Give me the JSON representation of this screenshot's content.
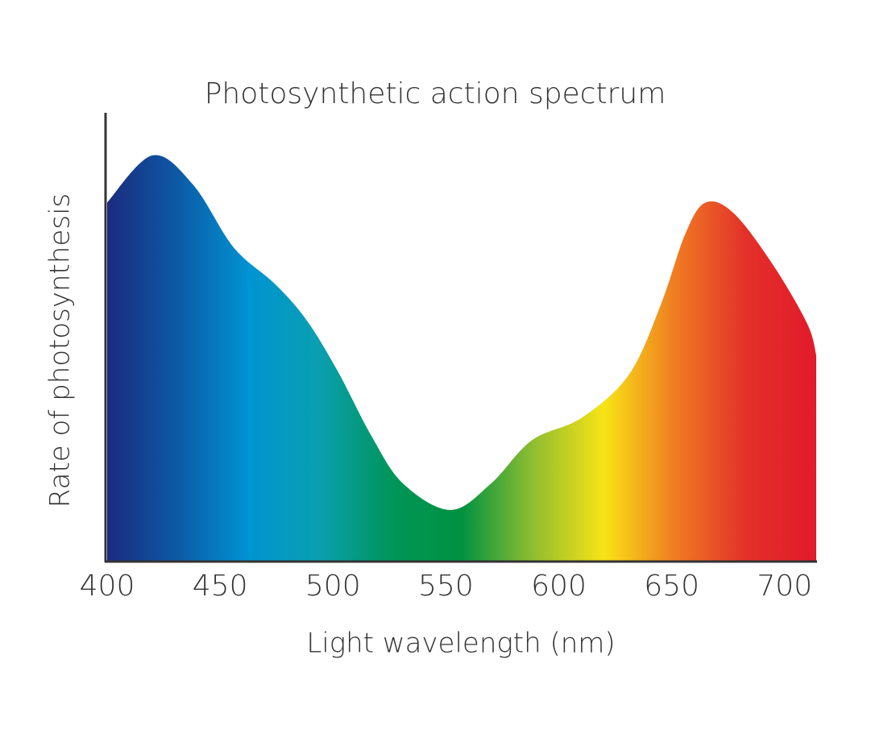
{
  "chart_data": {
    "type": "area",
    "title": "Photosynthetic action spectrum",
    "x_label": "Light wavelength (nm)",
    "y_label": "Rate of photosynthesis",
    "x": [
      400,
      420,
      438,
      456,
      474,
      488,
      502,
      517,
      531,
      552,
      570,
      588,
      610,
      631,
      645,
      656,
      665,
      677.5,
      695,
      710,
      714
    ],
    "values": [
      80,
      90.5,
      84,
      70,
      62,
      54,
      42.5,
      28,
      17.4,
      11.5,
      17.4,
      27,
      32,
      41.6,
      57,
      73,
      80,
      77.6,
      66,
      53,
      46
    ],
    "colors": [
      "#1b2b7f",
      "#0d5aa6",
      "#0094d2",
      "#0a9fb0",
      "#00955a",
      "#009240",
      "#8fbd30",
      "#f7e415",
      "#f07d22",
      "#e3312a",
      "#e21a2a"
    ],
    "xlim": [
      400,
      714
    ],
    "xticks": [
      400,
      450,
      500,
      550,
      600,
      650,
      700
    ],
    "ylim": [
      0,
      100
    ]
  }
}
